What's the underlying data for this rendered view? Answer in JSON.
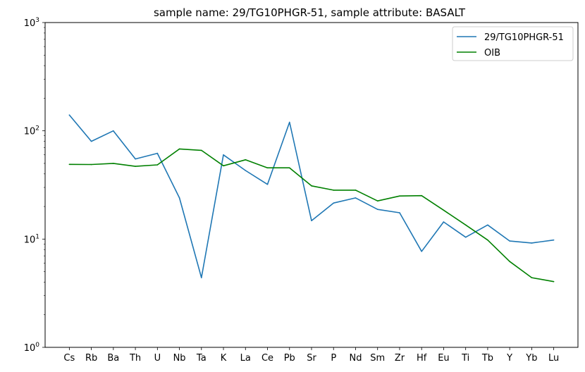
{
  "chart_data": {
    "type": "line",
    "title": "sample name: 29/TG10PHGR-51, sample attribute: BASALT",
    "xlabel": "",
    "ylabel": "",
    "yscale": "log",
    "ylim": [
      1,
      1000
    ],
    "y_ticks": [
      {
        "value": 1,
        "base": "10",
        "exp": "0"
      },
      {
        "value": 10,
        "base": "10",
        "exp": "1"
      },
      {
        "value": 100,
        "base": "10",
        "exp": "2"
      },
      {
        "value": 1000,
        "base": "10",
        "exp": "3"
      }
    ],
    "categories": [
      "Cs",
      "Rb",
      "Ba",
      "Th",
      "U",
      "Nb",
      "Ta",
      "K",
      "La",
      "Ce",
      "Pb",
      "Sr",
      "P",
      "Nd",
      "Sm",
      "Zr",
      "Hf",
      "Eu",
      "Ti",
      "Tb",
      "Y",
      "Yb",
      "Lu"
    ],
    "series": [
      {
        "name": "29/TG10PHGR-51",
        "color": "#1f77b4",
        "values": [
          140,
          80,
          100,
          55,
          62,
          24,
          4.4,
          60,
          43,
          32,
          120,
          14.8,
          21.5,
          24,
          18.8,
          17.5,
          7.7,
          14.4,
          10.4,
          13.5,
          9.6,
          9.2,
          9.8
        ]
      },
      {
        "name": "OIB",
        "color": "#008000",
        "values": [
          49,
          48.8,
          50,
          47,
          48.5,
          68,
          66,
          47.5,
          54,
          45.5,
          45.5,
          31,
          28.3,
          28.3,
          22.5,
          25,
          25.2,
          18.5,
          13.5,
          9.8,
          6.2,
          4.4,
          4.05
        ]
      }
    ],
    "legend_position": "top-right",
    "grid": false
  }
}
